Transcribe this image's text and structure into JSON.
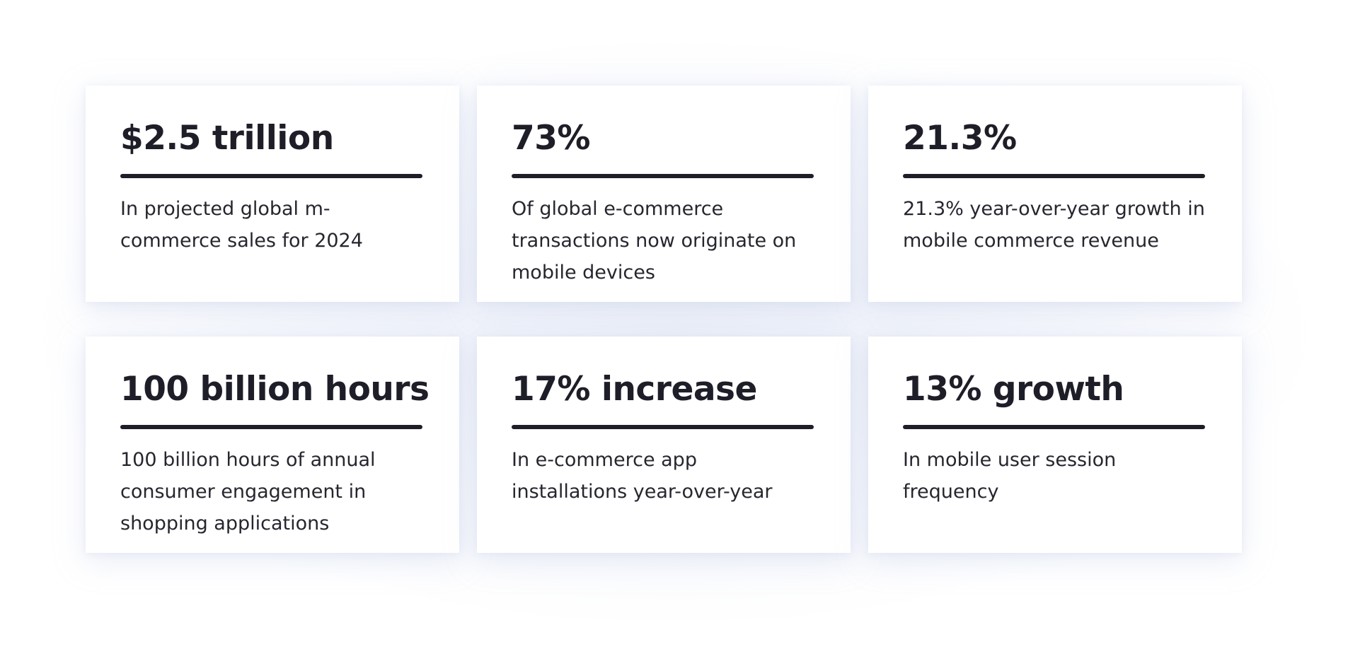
{
  "stats": [
    {
      "value": "$2.5 trillion",
      "description": "In projected global m-commerce sales for 2024"
    },
    {
      "value": "73%",
      "description": "Of global e-commerce transactions now originate on mobile devices"
    },
    {
      "value": "21.3%",
      "description": "21.3% year-over-year growth in mobile commerce revenue"
    },
    {
      "value": "100 billion hours",
      "description": "100 billion hours of annual consumer engagement in shopping applications"
    },
    {
      "value": "17% increase",
      "description": "In e-commerce app installations year-over-year"
    },
    {
      "value": "13% growth",
      "description": "In mobile user session frequency"
    }
  ],
  "colors": {
    "text": "#1e1e28",
    "card_background": "#ffffff",
    "shadow": "#dfe4f4"
  }
}
